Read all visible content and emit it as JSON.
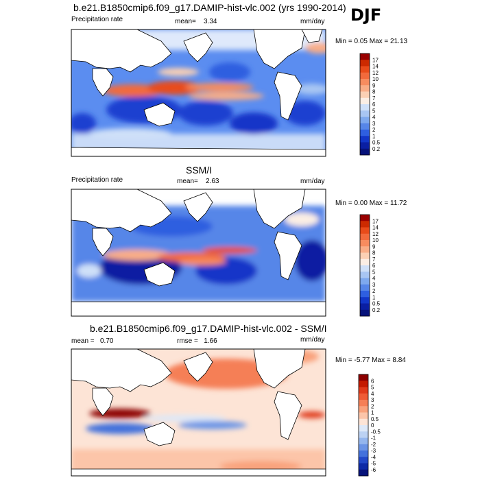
{
  "season": "DJF",
  "panels": [
    {
      "title": "b.e21.B1850cmip6.f09_g17.DAMIP-hist-vlc.002 (yrs 1990-2014)",
      "left_label": "Precipitation rate",
      "mean_label": "mean=",
      "mean_value": "3.34",
      "units": "mm/day",
      "stats": "Min =   0.05 Max =  21.13"
    },
    {
      "title": "SSM/I",
      "left_label": "Precipitation rate",
      "mean_label": "mean=",
      "mean_value": "2.63",
      "units": "mm/day",
      "stats": "Min =   0.00 Max =  11.72"
    },
    {
      "title": "b.e21.B1850cmip6.f09_g17.DAMIP-hist-vlc.002 - SSM/I",
      "left_label": "mean =",
      "left_value": "0.70",
      "mean_label": "rmse =",
      "mean_value": "1.66",
      "units": "mm/day",
      "stats": "Min =  -5.77 Max =   8.84"
    }
  ],
  "chart_data": [
    {
      "type": "heatmap",
      "title": "b.e21.B1850cmip6.f09_g17.DAMIP-hist-vlc.002 (yrs 1990-2014)",
      "variable": "Precipitation rate",
      "units": "mm/day",
      "mean": 3.34,
      "min": 0.05,
      "max": 21.13,
      "colorbar_levels": [
        "17",
        "14",
        "12",
        "10",
        "9",
        "8",
        "7",
        "6",
        "5",
        "4",
        "3",
        "2",
        "1",
        "0.5",
        "0.2"
      ],
      "colorbar_colors": [
        "#990000",
        "#cc2a00",
        "#e84b1a",
        "#f26a3c",
        "#f78c5f",
        "#f9ad87",
        "#fbd0b4",
        "#fbeee4",
        "#cfe0f8",
        "#a8c6f3",
        "#7ea9ee",
        "#5686e8",
        "#2e5fe0",
        "#1236c8",
        "#0a1fa2",
        "#06127a"
      ]
    },
    {
      "type": "heatmap",
      "title": "SSM/I",
      "variable": "Precipitation rate",
      "units": "mm/day",
      "mean": 2.63,
      "min": 0.0,
      "max": 11.72,
      "colorbar_levels": [
        "17",
        "14",
        "12",
        "10",
        "9",
        "8",
        "7",
        "6",
        "5",
        "4",
        "3",
        "2",
        "1",
        "0.5",
        "0.2"
      ],
      "colorbar_colors": [
        "#990000",
        "#cc2a00",
        "#e84b1a",
        "#f26a3c",
        "#f78c5f",
        "#f9ad87",
        "#fbd0b4",
        "#fbeee4",
        "#cfe0f8",
        "#a8c6f3",
        "#7ea9ee",
        "#5686e8",
        "#2e5fe0",
        "#1236c8",
        "#0a1fa2",
        "#06127a"
      ]
    },
    {
      "type": "heatmap",
      "title": "b.e21.B1850cmip6.f09_g17.DAMIP-hist-vlc.002 - SSM/I",
      "units": "mm/day",
      "mean": 0.7,
      "rmse": 1.66,
      "min": -5.77,
      "max": 8.84,
      "colorbar_levels": [
        "6",
        "5",
        "4",
        "3",
        "2",
        "1",
        "0.5",
        "0",
        "-0.5",
        "-1",
        "-2",
        "-3",
        "-4",
        "-5",
        "-6"
      ],
      "colorbar_colors": [
        "#8c0000",
        "#c41a00",
        "#e03a1a",
        "#ef5c36",
        "#f57f56",
        "#f9a27c",
        "#fcc5a9",
        "#fde4d6",
        "#dde8f8",
        "#bcd2f3",
        "#94b6ee",
        "#6b94e6",
        "#4371dc",
        "#2248c8",
        "#0e2aa6",
        "#06127a"
      ]
    }
  ]
}
